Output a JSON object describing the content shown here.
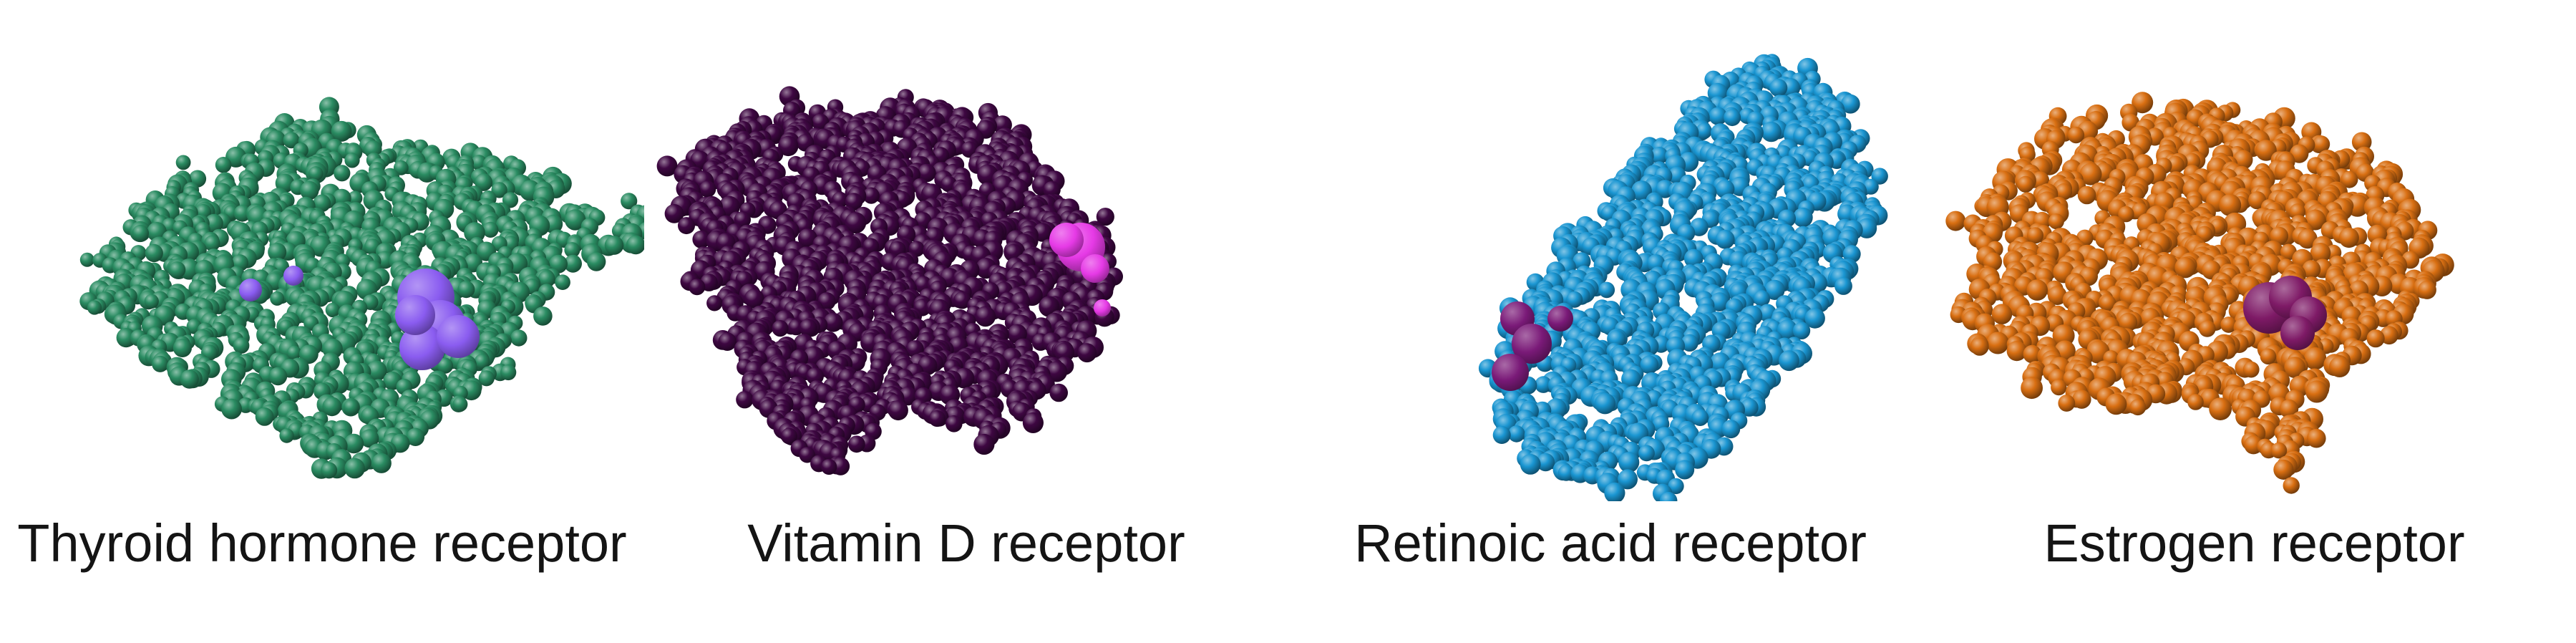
{
  "panels": [
    {
      "label": "Thyroid hormone receptor",
      "protein_color": "#2a8c62",
      "ligand_color": "#8a5cf0"
    },
    {
      "label": "Vitamin D receptor",
      "protein_color": "#3e0742",
      "ligand_color": "#e63ae6"
    },
    {
      "label": "Retinoic acid receptor",
      "protein_color": "#1a96d2",
      "ligand_color": "#7a1a78"
    },
    {
      "label": "Estrogen receptor",
      "protein_color": "#d96f12",
      "ligand_color": "#7e1a66"
    }
  ]
}
